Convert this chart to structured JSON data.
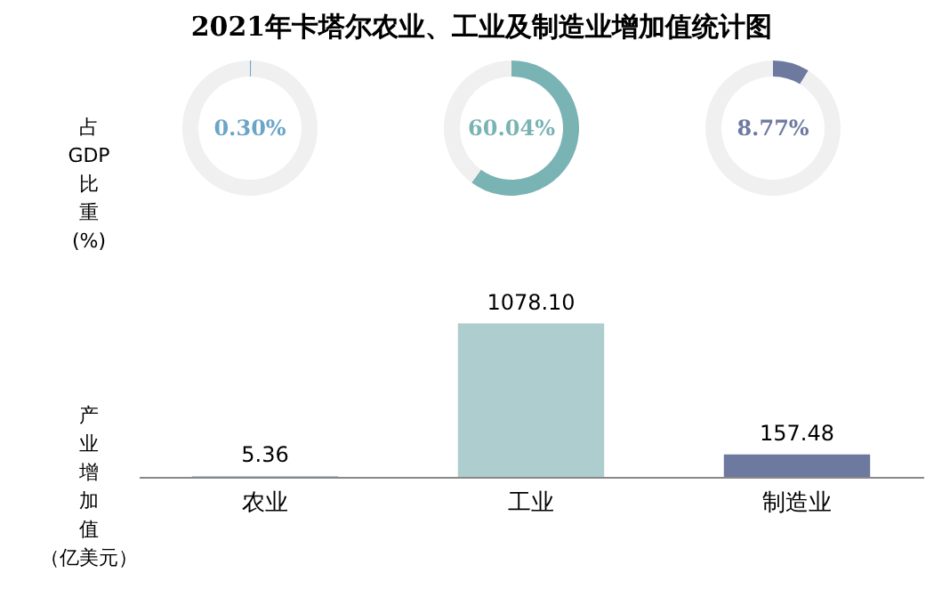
{
  "chart_data": [
    {
      "type": "donut",
      "title": "2021年卡塔尔农业、工业及制造业增加值统计图",
      "ylabel": "占GDP比重(%)",
      "categories": [
        null,
        null
      ],
      "values": [
        0.3,
        99.7
      ],
      "colors": [
        "#6aa5c8",
        "#f0f0f0"
      ],
      "annotations": [
        "0.30%"
      ]
    },
    {
      "type": "donut",
      "categories": [
        null,
        null
      ],
      "values": [
        60.04,
        39.96
      ],
      "colors": [
        "#7ab3b3",
        "#f0f0f0"
      ],
      "annotations": [
        "60.04%"
      ]
    },
    {
      "type": "donut",
      "categories": [
        null,
        null
      ],
      "values": [
        8.77,
        91.23
      ],
      "colors": [
        "#6e799f",
        "#f0f0f0"
      ],
      "annotations": [
        "8.77%"
      ]
    },
    {
      "type": "bar",
      "ylabel": "产业增加值（亿美元）",
      "categories": [
        "农业",
        "工业",
        "制造业"
      ],
      "values": [
        5.36,
        1078.1,
        157.48
      ],
      "colors": [
        "#8fb8d8",
        "#adcdcf",
        "#6e799f"
      ],
      "value_labels": [
        "5.36",
        "1078.10",
        "157.48"
      ]
    }
  ]
}
